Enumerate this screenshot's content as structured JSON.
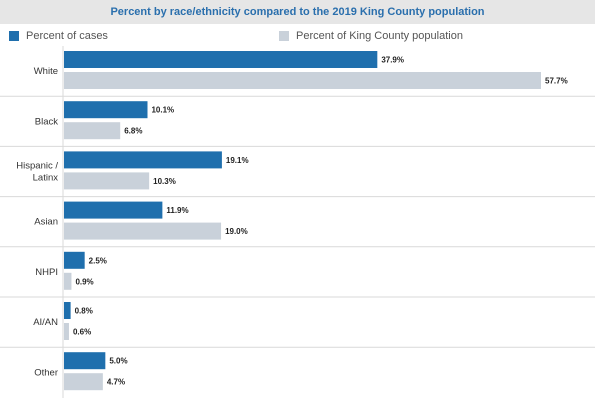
{
  "title": "Percent by race/ethnicity compared to the 2019 King County population",
  "legend": {
    "cases_label": "Percent of cases",
    "population_label": "Percent of King County population"
  },
  "colors": {
    "cases": "#1f6fad",
    "population": "#c9d1da",
    "title": "#2a6fad",
    "title_bg": "#e6e6e6",
    "divider": "#d9d9d9"
  },
  "chart_data": {
    "type": "bar",
    "orientation": "horizontal",
    "title": "Percent by race/ethnicity compared to the 2019 King County population",
    "categories": [
      [
        "White"
      ],
      [
        "Black"
      ],
      [
        "Hispanic /",
        "Latinx"
      ],
      [
        "Asian"
      ],
      [
        "NHPI"
      ],
      [
        "AI/AN"
      ],
      [
        "Other"
      ]
    ],
    "series": [
      {
        "name": "Percent of cases",
        "values": [
          37.9,
          10.1,
          19.1,
          11.9,
          2.5,
          0.8,
          5.0
        ],
        "labels": [
          "37.9%",
          "10.1%",
          "19.1%",
          "11.9%",
          "2.5%",
          "0.8%",
          "5.0%"
        ]
      },
      {
        "name": "Percent of King County population",
        "values": [
          57.7,
          6.8,
          10.3,
          19.0,
          0.9,
          0.6,
          4.7
        ],
        "labels": [
          "57.7%",
          "6.8%",
          "10.3%",
          "19.0%",
          "0.9%",
          "0.6%",
          "4.7%"
        ]
      }
    ],
    "xlim": [
      0,
      57.7
    ],
    "grid": false,
    "legend_position": "top"
  }
}
